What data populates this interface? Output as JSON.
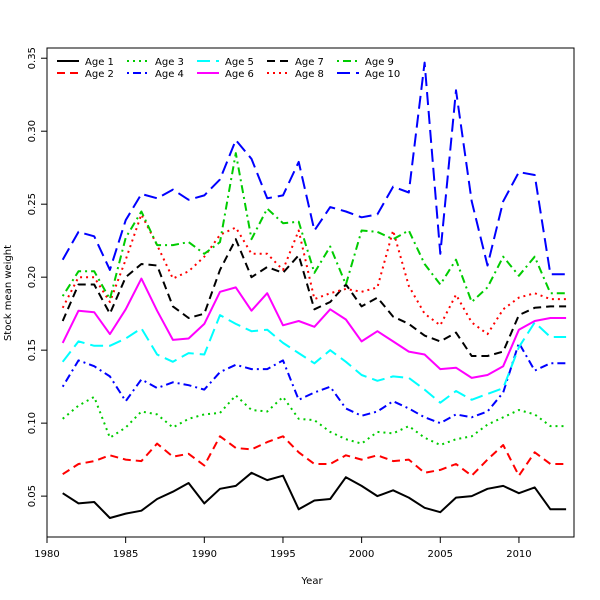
{
  "chart_data": {
    "type": "line",
    "xlabel": "Year",
    "ylabel": "Stock mean weight",
    "xlim": [
      1980,
      2013.5
    ],
    "ylim": [
      0.022,
      0.357
    ],
    "x_ticks": [
      1980,
      1985,
      1990,
      1995,
      2000,
      2005,
      2010
    ],
    "y_ticks": [
      0.05,
      0.1,
      0.15,
      0.2,
      0.25,
      0.3,
      0.35
    ],
    "x_tick_labels": [
      "1980",
      "1985",
      "1990",
      "1995",
      "2000",
      "2005",
      "2010"
    ],
    "y_tick_labels": [
      "0.05",
      "0.10",
      "0.15",
      "0.20",
      "0.25",
      "0.30",
      "0.35"
    ],
    "legend_position": "top-left",
    "x": [
      1981,
      1982,
      1983,
      1984,
      1985,
      1986,
      1987,
      1988,
      1989,
      1990,
      1991,
      1992,
      1993,
      1994,
      1995,
      1996,
      1997,
      1998,
      1999,
      2000,
      2001,
      2002,
      2003,
      2004,
      2005,
      2006,
      2007,
      2008,
      2009,
      2010,
      2011,
      2012,
      2013
    ],
    "series": [
      {
        "name": "Age 1",
        "color": "#000000",
        "dash": "solid",
        "values": [
          0.052,
          0.045,
          0.046,
          0.035,
          0.038,
          0.04,
          0.048,
          0.053,
          0.059,
          0.045,
          0.055,
          0.057,
          0.066,
          0.061,
          0.064,
          0.041,
          0.047,
          0.048,
          0.063,
          0.057,
          0.05,
          0.054,
          0.049,
          0.042,
          0.039,
          0.049,
          0.05,
          0.055,
          0.057,
          0.052,
          0.056,
          0.041,
          0.041
        ]
      },
      {
        "name": "Age 2",
        "color": "#ff0000",
        "dash": "dashed",
        "values": [
          0.065,
          0.072,
          0.074,
          0.078,
          0.075,
          0.074,
          0.086,
          0.077,
          0.079,
          0.071,
          0.091,
          0.083,
          0.082,
          0.087,
          0.091,
          0.08,
          0.072,
          0.072,
          0.078,
          0.075,
          0.078,
          0.074,
          0.075,
          0.066,
          0.068,
          0.072,
          0.064,
          0.075,
          0.085,
          0.064,
          0.08,
          0.072,
          0.072
        ]
      },
      {
        "name": "Age 3",
        "color": "#00cc00",
        "dash": "dotted",
        "values": [
          0.103,
          0.112,
          0.118,
          0.09,
          0.097,
          0.108,
          0.106,
          0.097,
          0.103,
          0.106,
          0.107,
          0.119,
          0.109,
          0.108,
          0.118,
          0.103,
          0.102,
          0.094,
          0.089,
          0.086,
          0.094,
          0.093,
          0.098,
          0.09,
          0.085,
          0.089,
          0.091,
          0.099,
          0.104,
          0.109,
          0.106,
          0.098,
          0.098
        ]
      },
      {
        "name": "Age 4",
        "color": "#0000ff",
        "dash": "dashdot",
        "values": [
          0.125,
          0.143,
          0.139,
          0.132,
          0.115,
          0.13,
          0.124,
          0.128,
          0.126,
          0.123,
          0.135,
          0.14,
          0.137,
          0.137,
          0.143,
          0.116,
          0.121,
          0.125,
          0.11,
          0.105,
          0.108,
          0.115,
          0.11,
          0.104,
          0.1,
          0.106,
          0.104,
          0.108,
          0.121,
          0.155,
          0.136,
          0.141,
          0.141
        ]
      },
      {
        "name": "Age 5",
        "color": "#00ffff",
        "dash": "longdash",
        "values": [
          0.142,
          0.156,
          0.153,
          0.153,
          0.158,
          0.165,
          0.147,
          0.142,
          0.148,
          0.147,
          0.174,
          0.168,
          0.163,
          0.164,
          0.155,
          0.148,
          0.141,
          0.15,
          0.142,
          0.133,
          0.129,
          0.132,
          0.131,
          0.123,
          0.114,
          0.122,
          0.116,
          0.12,
          0.124,
          0.152,
          0.169,
          0.159,
          0.159
        ]
      },
      {
        "name": "Age 6",
        "color": "#ff00ff",
        "dash": "solid",
        "values": [
          0.155,
          0.177,
          0.176,
          0.161,
          0.178,
          0.199,
          0.177,
          0.157,
          0.158,
          0.168,
          0.19,
          0.193,
          0.177,
          0.189,
          0.167,
          0.17,
          0.166,
          0.178,
          0.171,
          0.156,
          0.163,
          0.156,
          0.149,
          0.147,
          0.137,
          0.138,
          0.131,
          0.133,
          0.139,
          0.164,
          0.17,
          0.172,
          0.172
        ]
      },
      {
        "name": "Age 7",
        "color": "#000000",
        "dash": "dashed",
        "values": [
          0.17,
          0.195,
          0.195,
          0.175,
          0.2,
          0.209,
          0.208,
          0.18,
          0.172,
          0.175,
          0.205,
          0.226,
          0.2,
          0.207,
          0.203,
          0.215,
          0.178,
          0.183,
          0.195,
          0.18,
          0.186,
          0.173,
          0.168,
          0.16,
          0.156,
          0.162,
          0.146,
          0.146,
          0.149,
          0.174,
          0.179,
          0.18,
          0.18
        ]
      },
      {
        "name": "Age 8",
        "color": "#ff0000",
        "dash": "dotted",
        "values": [
          0.179,
          0.2,
          0.2,
          0.183,
          0.212,
          0.243,
          0.222,
          0.199,
          0.204,
          0.214,
          0.229,
          0.234,
          0.216,
          0.216,
          0.205,
          0.232,
          0.185,
          0.189,
          0.192,
          0.19,
          0.193,
          0.232,
          0.194,
          0.175,
          0.167,
          0.188,
          0.169,
          0.161,
          0.178,
          0.186,
          0.189,
          0.185,
          0.185
        ]
      },
      {
        "name": "Age 9",
        "color": "#00cc00",
        "dash": "dashdot",
        "values": [
          0.187,
          0.204,
          0.204,
          0.185,
          0.227,
          0.245,
          0.222,
          0.222,
          0.224,
          0.216,
          0.224,
          0.285,
          0.226,
          0.247,
          0.237,
          0.238,
          0.203,
          0.221,
          0.195,
          0.232,
          0.231,
          0.226,
          0.232,
          0.209,
          0.195,
          0.212,
          0.183,
          0.193,
          0.214,
          0.201,
          0.214,
          0.189,
          0.189
        ]
      },
      {
        "name": "Age 10",
        "color": "#0000ff",
        "dash": "longdash",
        "values": [
          0.212,
          0.231,
          0.228,
          0.205,
          0.239,
          0.257,
          0.254,
          0.26,
          0.253,
          0.256,
          0.267,
          0.294,
          0.281,
          0.254,
          0.256,
          0.279,
          0.232,
          0.248,
          0.245,
          0.241,
          0.243,
          0.262,
          0.258,
          0.347,
          0.216,
          0.328,
          0.252,
          0.208,
          0.252,
          0.272,
          0.27,
          0.202,
          0.202
        ]
      }
    ]
  }
}
